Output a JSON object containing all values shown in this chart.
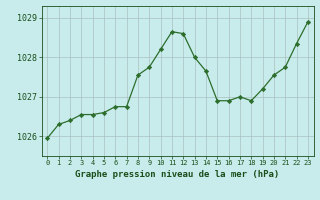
{
  "x": [
    0,
    1,
    2,
    3,
    4,
    5,
    6,
    7,
    8,
    9,
    10,
    11,
    12,
    13,
    14,
    15,
    16,
    17,
    18,
    19,
    20,
    21,
    22,
    23
  ],
  "y": [
    1025.95,
    1026.3,
    1026.4,
    1026.55,
    1026.55,
    1026.6,
    1026.75,
    1026.75,
    1027.55,
    1027.75,
    1028.2,
    1028.65,
    1028.6,
    1028.0,
    1027.65,
    1026.9,
    1026.9,
    1027.0,
    1026.9,
    1027.2,
    1027.55,
    1027.75,
    1028.35,
    1028.9
  ],
  "line_color": "#2d6e2d",
  "marker": "D",
  "marker_size": 2.2,
  "background_color": "#c8ecec",
  "grid_color": "#aabfbf",
  "xlabel": "Graphe pression niveau de la mer (hPa)",
  "xlabel_color": "#1a4e1a",
  "tick_color": "#1a4e1a",
  "ylim": [
    1025.5,
    1029.3
  ],
  "yticks": [
    1026,
    1027,
    1028,
    1029
  ],
  "xlim": [
    -0.5,
    23.5
  ],
  "xticks": [
    0,
    1,
    2,
    3,
    4,
    5,
    6,
    7,
    8,
    9,
    10,
    11,
    12,
    13,
    14,
    15,
    16,
    17,
    18,
    19,
    20,
    21,
    22,
    23
  ]
}
